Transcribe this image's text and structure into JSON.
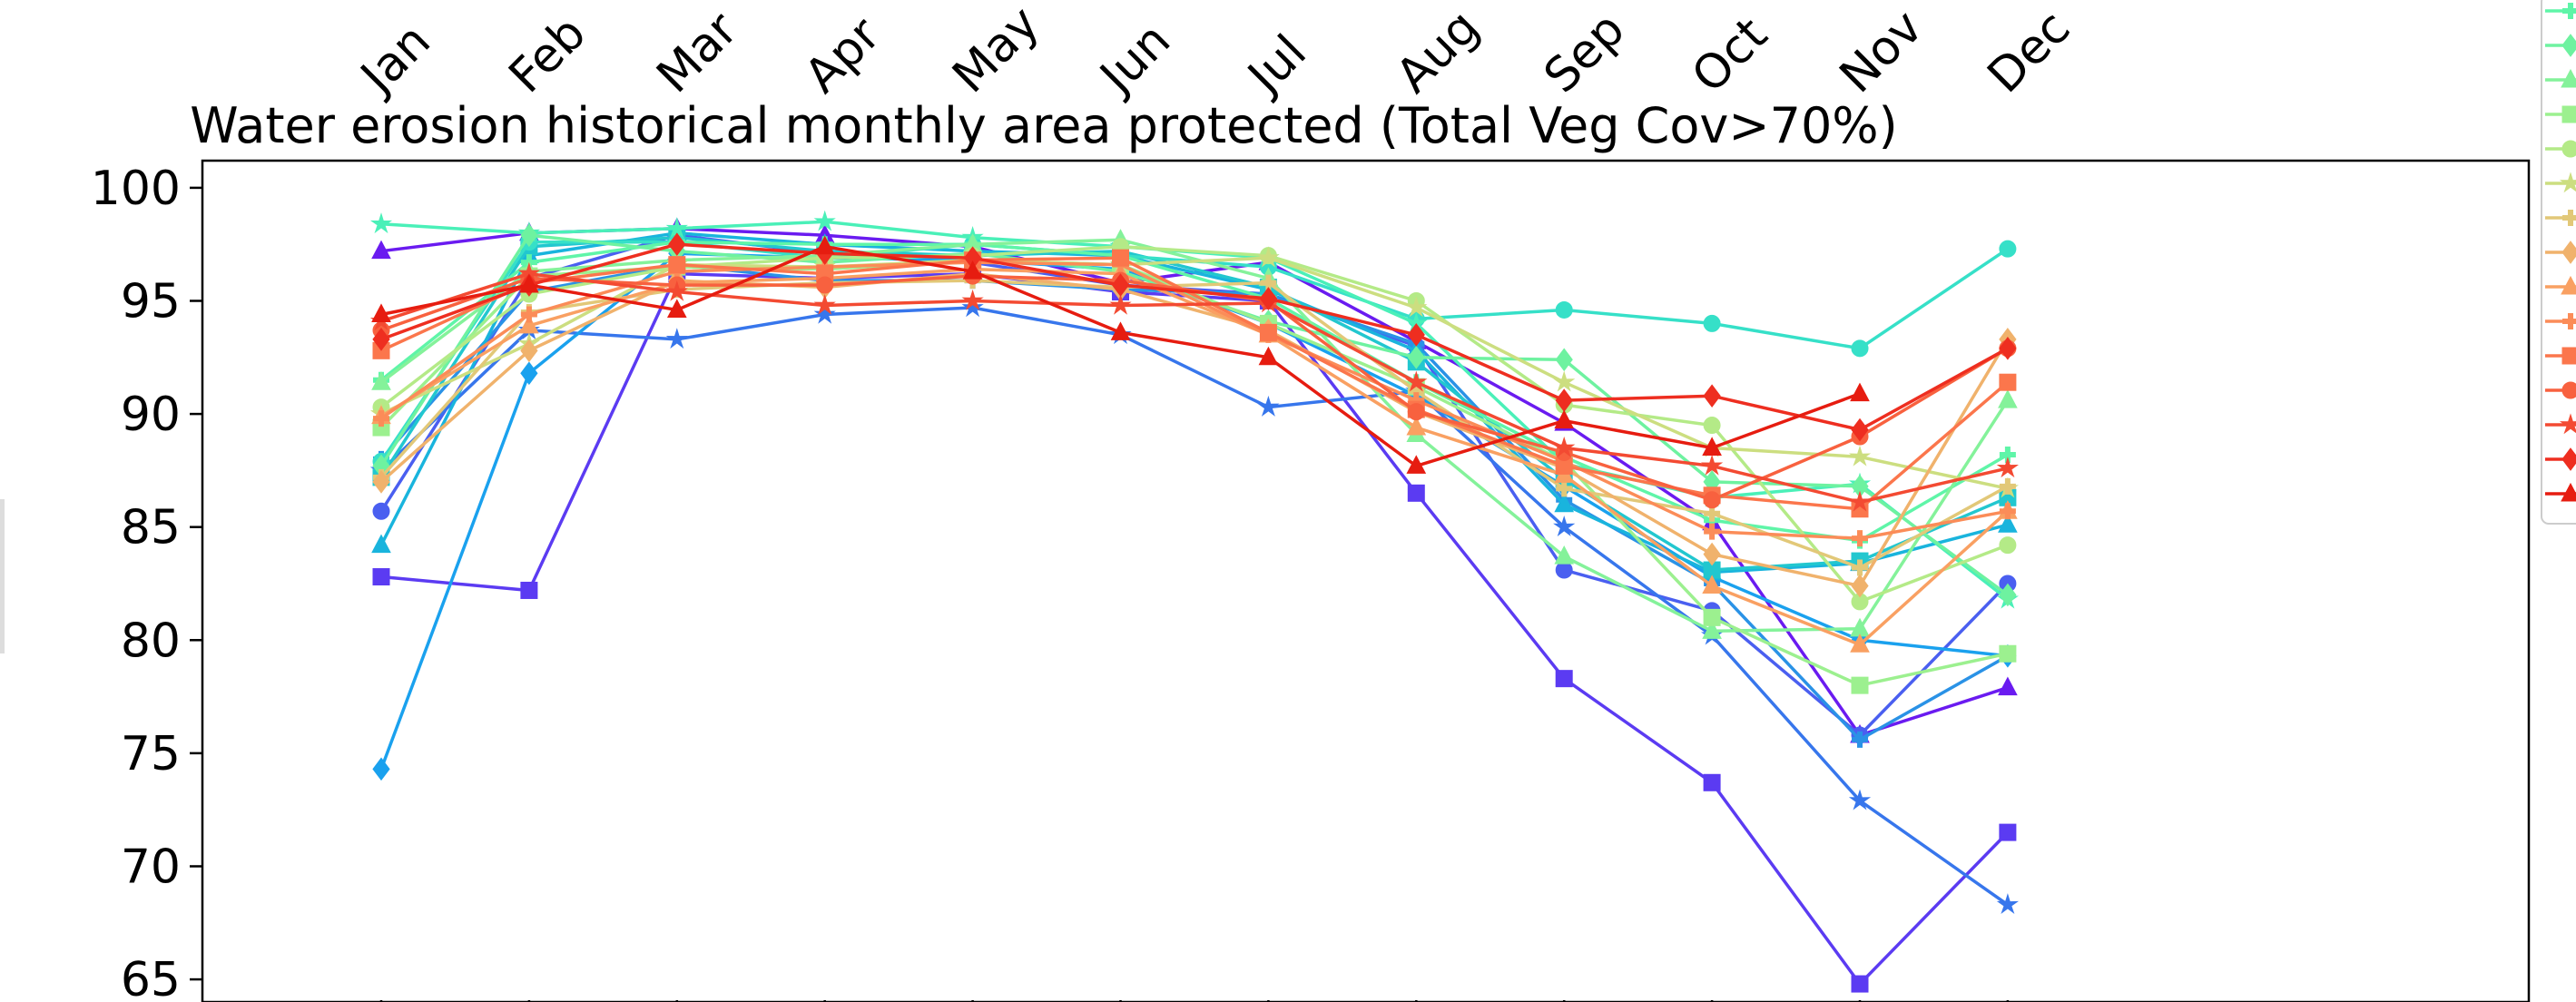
{
  "chart_data": {
    "type": "line",
    "title": "Water erosion historical monthly area protected (Total Veg Cov>70%)",
    "xlabel": "",
    "ylabel": "",
    "categories": [
      "Jan",
      "Feb",
      "Mar",
      "Apr",
      "May",
      "Jun",
      "Jul",
      "Aug",
      "Sep",
      "Oct",
      "Nov",
      "Dec"
    ],
    "yticks": [
      65,
      70,
      75,
      80,
      85,
      90,
      95,
      100
    ],
    "ylim": [
      64,
      101.2
    ],
    "grid": false,
    "legend": "right (partially cropped, labels not visible)",
    "series": [
      {
        "color": "#6a1bf0",
        "marker": "triangle",
        "values": [
          97.2,
          98.0,
          98.2,
          97.9,
          97.4,
          95.8,
          96.7,
          93.2,
          89.6,
          85.2,
          75.8,
          77.9
        ]
      },
      {
        "color": "#5b3bf2",
        "marker": "square",
        "values": [
          82.8,
          82.2,
          96.2,
          96.0,
          96.2,
          95.4,
          95.0,
          86.5,
          78.3,
          73.7,
          64.8,
          71.5
        ]
      },
      {
        "color": "#4a5ff0",
        "marker": "circle",
        "values": [
          85.7,
          96.0,
          97.9,
          97.1,
          96.7,
          95.7,
          95.3,
          93.0,
          83.1,
          81.3,
          75.8,
          82.5
        ]
      },
      {
        "color": "#3776ec",
        "marker": "star",
        "values": [
          87.5,
          93.7,
          93.3,
          94.4,
          94.7,
          93.5,
          90.3,
          91.0,
          85.0,
          80.2,
          72.9,
          68.3
        ]
      },
      {
        "color": "#2a92e6",
        "marker": "plus",
        "values": [
          88.0,
          95.4,
          96.6,
          95.9,
          95.9,
          95.5,
          95.3,
          93.1,
          86.2,
          82.5,
          75.6,
          79.3
        ]
      },
      {
        "color": "#1aa1ee",
        "marker": "diamond",
        "values": [
          74.3,
          91.8,
          97.1,
          96.9,
          96.8,
          96.4,
          94.0,
          90.8,
          86.8,
          82.8,
          80.0,
          79.3
        ]
      },
      {
        "color": "#19b4dd",
        "marker": "triangle",
        "values": [
          84.2,
          97.0,
          98.0,
          97.5,
          97.2,
          97.0,
          95.5,
          92.8,
          86.0,
          83.0,
          83.4,
          85.1
        ]
      },
      {
        "color": "#22c7cf",
        "marker": "square",
        "values": [
          87.2,
          97.4,
          97.8,
          97.2,
          97.0,
          97.2,
          95.6,
          92.3,
          87.1,
          83.1,
          83.5,
          86.3
        ]
      },
      {
        "color": "#36e0c8",
        "marker": "circle",
        "values": [
          87.9,
          97.6,
          97.6,
          96.9,
          97.5,
          97.0,
          96.5,
          94.2,
          94.6,
          94.0,
          92.9,
          97.3
        ]
      },
      {
        "color": "#4af0b8",
        "marker": "star",
        "values": [
          98.4,
          98.0,
          98.2,
          98.5,
          97.8,
          97.4,
          96.9,
          94.0,
          87.8,
          86.3,
          86.9,
          81.8
        ]
      },
      {
        "color": "#5ff5a8",
        "marker": "plus",
        "values": [
          91.5,
          96.7,
          97.6,
          97.5,
          97.5,
          97.0,
          95.1,
          91.4,
          88.1,
          85.3,
          84.4,
          88.2
        ]
      },
      {
        "color": "#6ef2a0",
        "marker": "diamond",
        "values": [
          87.7,
          97.9,
          97.2,
          96.7,
          97.1,
          96.3,
          94.1,
          92.5,
          92.4,
          87.0,
          86.8,
          82.0
        ]
      },
      {
        "color": "#84f29a",
        "marker": "triangle",
        "values": [
          91.4,
          96.3,
          96.8,
          97.0,
          97.5,
          97.7,
          96.0,
          89.1,
          83.7,
          80.4,
          80.5,
          90.6
        ]
      },
      {
        "color": "#9cf08f",
        "marker": "square",
        "values": [
          89.4,
          96.1,
          96.5,
          96.4,
          96.8,
          96.6,
          94.0,
          91.2,
          87.9,
          81.0,
          78.0,
          79.4
        ]
      },
      {
        "color": "#b4ea87",
        "marker": "circle",
        "values": [
          90.3,
          95.3,
          96.5,
          96.9,
          97.0,
          97.4,
          97.0,
          95.0,
          90.4,
          89.5,
          81.7,
          84.2
        ]
      },
      {
        "color": "#ccde80",
        "marker": "star",
        "values": [
          90.0,
          93.1,
          96.6,
          96.5,
          96.8,
          96.6,
          96.9,
          94.7,
          91.4,
          88.5,
          88.1,
          86.7
        ]
      },
      {
        "color": "#e2c878",
        "marker": "plus",
        "values": [
          87.2,
          94.5,
          95.5,
          95.8,
          95.9,
          95.6,
          95.8,
          91.0,
          86.7,
          85.6,
          83.2,
          86.8
        ]
      },
      {
        "color": "#f0b26c",
        "marker": "diamond",
        "values": [
          87.0,
          92.8,
          95.9,
          95.6,
          96.2,
          95.5,
          93.7,
          90.1,
          87.6,
          83.8,
          82.4,
          93.3
        ]
      },
      {
        "color": "#f9a062",
        "marker": "triangle",
        "values": [
          89.9,
          93.9,
          95.8,
          96.0,
          96.4,
          96.2,
          93.5,
          89.4,
          87.3,
          82.4,
          79.8,
          85.7
        ]
      },
      {
        "color": "#fb8c58",
        "marker": "plus",
        "values": [
          89.8,
          94.4,
          96.3,
          96.5,
          96.7,
          96.6,
          93.5,
          90.6,
          87.9,
          84.8,
          84.5,
          85.7
        ]
      },
      {
        "color": "#fb764c",
        "marker": "square",
        "values": [
          92.8,
          95.8,
          96.6,
          96.2,
          96.8,
          96.9,
          93.6,
          90.2,
          87.7,
          86.4,
          85.8,
          91.4
        ]
      },
      {
        "color": "#f8613f",
        "marker": "circle",
        "values": [
          93.7,
          96.0,
          95.7,
          95.7,
          96.1,
          95.9,
          95.0,
          90.1,
          88.3,
          86.2,
          89.0,
          92.9
        ]
      },
      {
        "color": "#f34a32",
        "marker": "star",
        "values": [
          94.1,
          96.2,
          95.4,
          94.8,
          95.0,
          94.8,
          94.9,
          91.4,
          88.5,
          87.7,
          86.1,
          87.6
        ]
      },
      {
        "color": "#ee2e20",
        "marker": "diamond",
        "values": [
          93.3,
          95.7,
          97.5,
          97.1,
          96.9,
          95.7,
          95.1,
          93.5,
          90.6,
          90.8,
          89.3,
          92.9
        ]
      },
      {
        "color": "#e61c10",
        "marker": "triangle",
        "values": [
          94.4,
          95.7,
          94.6,
          97.4,
          96.3,
          93.6,
          92.5,
          87.7,
          89.7,
          88.5,
          90.9,
          null
        ]
      }
    ]
  }
}
